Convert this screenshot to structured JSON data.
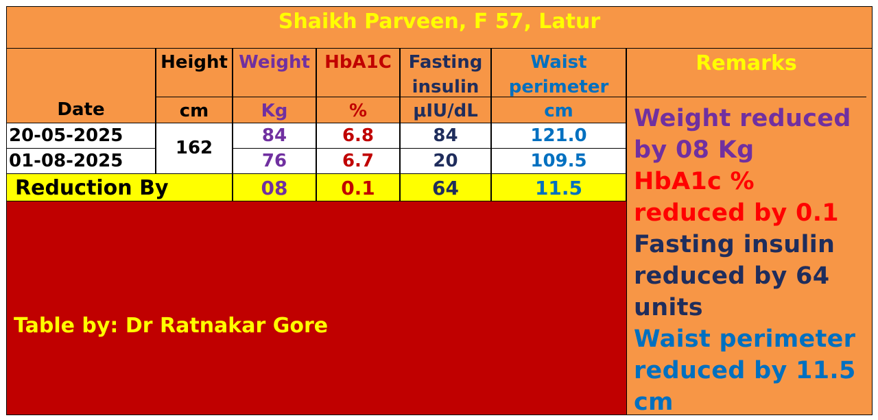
{
  "header": {
    "title": "Shaikh Parveen, F 57, Latur"
  },
  "table": {
    "headers": [
      "Date",
      "Height",
      "Weight",
      "HbA1C",
      "Fasting insulin",
      "Waist perimeter"
    ],
    "units": [
      "cm",
      "Kg",
      "%",
      "μIU/dL",
      "cm"
    ],
    "height": "162",
    "rows": [
      [
        "20-05-2025",
        "84",
        "6.8",
        "84",
        "121.0"
      ],
      [
        "01-08-2025",
        "76",
        "6.7",
        "20",
        "109.5"
      ]
    ],
    "reduction": {
      "label": "Reduction By",
      "values": [
        "08",
        "0.1",
        "64",
        "11.5"
      ]
    }
  },
  "footer": "Table by: Dr Ratnakar Gore",
  "remarks": {
    "title": "Remarks",
    "items": [
      "Weight reduced by 08 Kg",
      "HbA1c % reduced by 0.1",
      "Fasting insulin reduced by 64 units",
      "Waist perimeter reduced by 11.5 cm"
    ]
  }
}
